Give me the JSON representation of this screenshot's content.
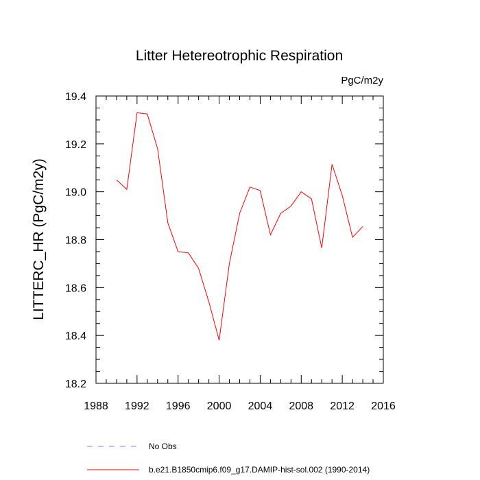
{
  "chart_data": {
    "type": "line",
    "title": "Litter Hetereotrophic Respiration",
    "units_label": "PgC/m2y",
    "xlabel": "",
    "ylabel": "LITTERC_HR  (PgC/m2y)",
    "xlim": [
      1988,
      2016
    ],
    "ylim": [
      18.2,
      19.4
    ],
    "x_ticks": [
      1988,
      1992,
      1996,
      2000,
      2004,
      2008,
      2012,
      2016
    ],
    "y_ticks": [
      18.2,
      18.4,
      18.6,
      18.8,
      19.0,
      19.2,
      19.4
    ],
    "x_tick_labels": [
      "1988",
      "1992",
      "1996",
      "2000",
      "2004",
      "2008",
      "2012",
      "2016"
    ],
    "y_tick_labels": [
      "18.2",
      "18.4",
      "18.6",
      "18.8",
      "19.0",
      "19.2",
      "19.4"
    ],
    "grid": false,
    "legend_position": "bottom",
    "series": [
      {
        "name": "b.e21.B1850cmip6.f09_g17.DAMIP-hist-sol.002 (1990-2014)",
        "color": "#ff0000",
        "style": "solid",
        "x": [
          1990,
          1991,
          1992,
          1993,
          1994,
          1995,
          1996,
          1997,
          1998,
          1999,
          2000,
          2001,
          2002,
          2003,
          2004,
          2005,
          2006,
          2007,
          2008,
          2009,
          2010,
          2011,
          2012,
          2013,
          2014
        ],
        "y": [
          19.05,
          19.01,
          19.33,
          19.325,
          19.18,
          18.87,
          18.75,
          18.745,
          18.68,
          18.54,
          18.38,
          18.7,
          18.91,
          19.02,
          19.005,
          18.82,
          18.91,
          18.94,
          19.0,
          18.97,
          18.765,
          19.115,
          18.985,
          18.81,
          18.855
        ]
      }
    ],
    "legend": [
      {
        "label": "No Obs",
        "color": "#8080ff",
        "style": "dashed"
      },
      {
        "label": "b.e21.B1850cmip6.f09_g17.DAMIP-hist-sol.002 (1990-2014)",
        "color": "#ff0000",
        "style": "solid"
      }
    ]
  }
}
